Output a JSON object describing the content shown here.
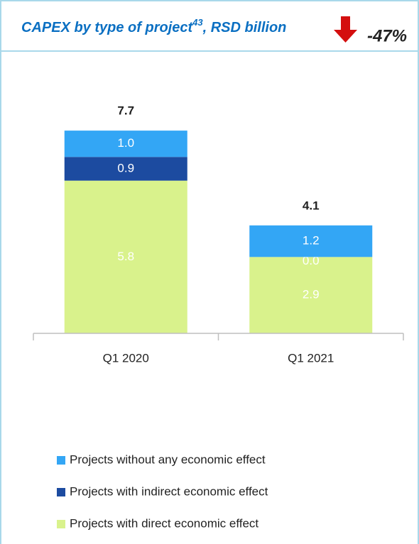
{
  "chart_data": {
    "type": "stacked_bar",
    "title": "CAPEX by type of project",
    "title_footnote": "43",
    "title_suffix": ", RSD billion",
    "change_badge": "-47%",
    "categories": [
      "Q1 2020",
      "Q1 2021"
    ],
    "series": [
      {
        "color": "#d9f28c",
        "values": [
          0.0,
          0.0
        ]
      },
      {
        "name": "Projects with direct economic effect",
        "color": "#d9f28c",
        "values": [
          5.8,
          2.9
        ]
      },
      {
        "name": "Projects with indirect economic effect",
        "color": "#1c4ba0",
        "values": [
          0.9,
          0.0
        ]
      },
      {
        "name": "Projects without any economic effect",
        "color": "#33a6f5",
        "values": [
          1.0,
          1.2
        ]
      }
    ],
    "value_labels": [
      [
        "0.0",
        "0.0"
      ],
      [
        "5.8",
        "2.9"
      ],
      [
        "0.9",
        "0.0"
      ],
      [
        "1.0",
        "1.2"
      ]
    ],
    "totals": [
      7.7,
      4.1
    ],
    "ylim": [
      0,
      8
    ]
  }
}
